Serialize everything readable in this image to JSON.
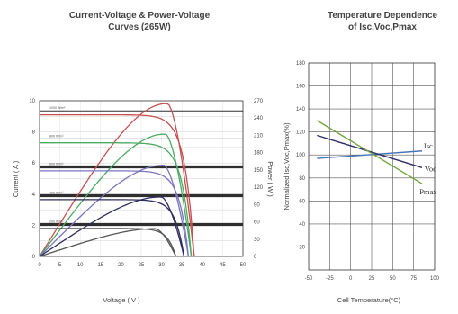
{
  "chart_data": [
    {
      "type": "line",
      "title": "Current-Voltage & Power-Voltage\nCurves (265W)",
      "xlabel": "Voltage ( V )",
      "ylabel": "Current ( A )",
      "y2label": "Power ( W )",
      "xlim": [
        0,
        50
      ],
      "ylim": [
        0,
        10
      ],
      "y2lim": [
        0,
        270
      ],
      "xticks": [
        "0",
        "5",
        "10",
        "15",
        "20",
        "25",
        "30",
        "35",
        "40",
        "45",
        "50"
      ],
      "yticks": [
        "0",
        "2",
        "4",
        "6",
        "8",
        "10"
      ],
      "y2ticks": [
        "0",
        "30",
        "60",
        "90",
        "120",
        "150",
        "180",
        "210",
        "240",
        "270"
      ],
      "series": [
        {
          "name": "1000 W/m²",
          "color": "#c6504f",
          "isc": 9.1,
          "voc": 38.0,
          "pmax": 265,
          "vmp": 31.5
        },
        {
          "name": "800 W/m²",
          "color": "#4caa63",
          "isc": 7.3,
          "voc": 37.3,
          "pmax": 212,
          "vmp": 31.0
        },
        {
          "name": "600 W/m²",
          "color": "#7a77bf",
          "isc": 5.5,
          "voc": 36.6,
          "pmax": 158,
          "vmp": 30.6
        },
        {
          "name": "400 W/m²",
          "color": "#2e2d5e",
          "isc": 3.65,
          "voc": 35.5,
          "pmax": 103,
          "vmp": 30.0
        },
        {
          "name": "200 W/m²",
          "color": "#555555",
          "isc": 1.8,
          "voc": 33.5,
          "pmax": 48,
          "vmp": 28.5
        }
      ]
    },
    {
      "type": "line",
      "title": "Temperature Dependence\nof Isc,Voc,Pmax",
      "xlabel": "Cell Temperature(°C)",
      "ylabel": "Normalized Isc,Voc,Pmax(%)",
      "xlim": [
        -50,
        100
      ],
      "ylim": [
        0,
        180
      ],
      "xticks": [
        "-50",
        "-25",
        "0",
        "25",
        "50",
        "75",
        "100"
      ],
      "yticks": [
        "20",
        "40",
        "60",
        "80",
        "100",
        "120",
        "140",
        "160",
        "180"
      ],
      "series": [
        {
          "name": "Isc",
          "color": "#4a74b8",
          "x": [
            -40,
            85
          ],
          "y": [
            97,
            103.5
          ]
        },
        {
          "name": "Voc",
          "color": "#2e2d66",
          "x": [
            -40,
            85
          ],
          "y": [
            117,
            89
          ]
        },
        {
          "name": "Pmax",
          "color": "#72a63d",
          "x": [
            -40,
            85
          ],
          "y": [
            130,
            75
          ]
        }
      ]
    }
  ]
}
